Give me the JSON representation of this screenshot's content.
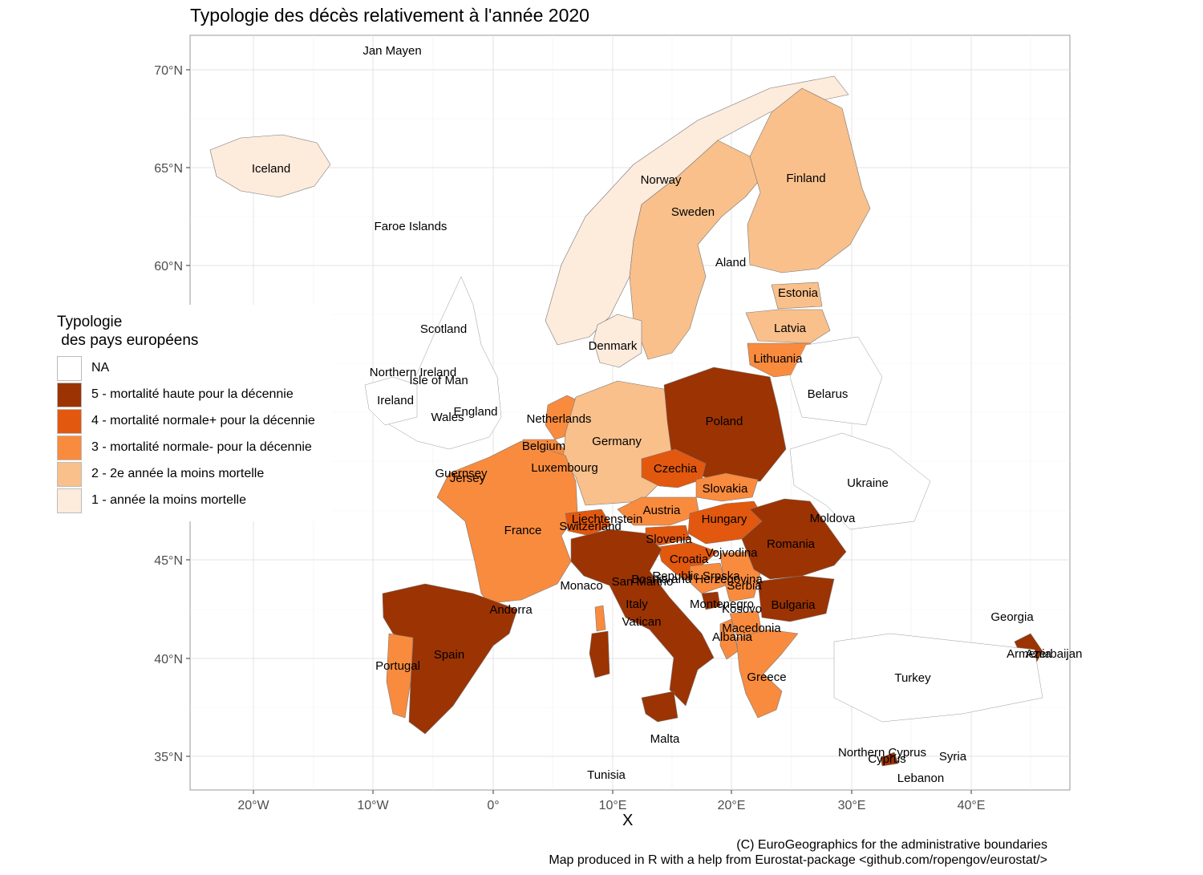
{
  "title": "Typologie des décès relativement à l'année 2020",
  "x_axis_title": "X",
  "axes": {
    "x_ticks": [
      "20°W",
      "10°W",
      "0°",
      "10°E",
      "20°E",
      "30°E",
      "40°E"
    ],
    "y_ticks": [
      "70°N",
      "65°N",
      "60°N",
      "45°N",
      "40°N",
      "35°N"
    ]
  },
  "legend": {
    "title": "Typologie\n des pays européens",
    "items": [
      {
        "label": "NA",
        "color": "#ffffff"
      },
      {
        "label": "5 - mortalité haute pour la décennie",
        "color": "#9c3303"
      },
      {
        "label": "4 - mortalité normale+ pour la décennie",
        "color": "#e2580e"
      },
      {
        "label": "3 - mortalité normale- pour la décennie",
        "color": "#f98b3e"
      },
      {
        "label": "2 - 2e année la moins mortelle",
        "color": "#f9c08b"
      },
      {
        "label": "1 - année la moins mortelle",
        "color": "#fdebdc"
      }
    ]
  },
  "country_labels": [
    "Jan Mayen",
    "Iceland",
    "Faroe Islands",
    "Norway",
    "Sweden",
    "Finland",
    "Aland",
    "Estonia",
    "Latvia",
    "Lithuania",
    "Scotland",
    "Denmark",
    "Northern Ireland",
    "Isle of Man",
    "Ireland",
    "Wales",
    "England",
    "Netherlands",
    "Belarus",
    "Poland",
    "Belgium",
    "Germany",
    "Luxembourg",
    "Guernsey",
    "Jersey",
    "Czechia",
    "Ukraine",
    "Slovakia",
    "Austria",
    "Liechtenstein",
    "Switzerland",
    "Hungary",
    "Moldova",
    "France",
    "Slovenia",
    "Romania",
    "Croatia",
    "Vojvodina",
    "Republic Srpska",
    "Bosnia and Herzegovina",
    "San Marino",
    "Monaco",
    "Serbia",
    "Montenegro",
    "Kosovo",
    "Italy",
    "Bulgaria",
    "Andorra",
    "Vatican",
    "Macedonia",
    "Albania",
    "Georgia",
    "Spain",
    "Portugal",
    "Armenia",
    "Azerbaijan",
    "Greece",
    "Turkey",
    "Malta",
    "Northern Cyprus",
    "Cyprus",
    "Syria",
    "Lebanon",
    "Tunisia"
  ],
  "caption": {
    "line1": "(C) EuroGeographics for the administrative boundaries",
    "line2": "Map produced in R with a help from Eurostat-package <github.com/ropengov/eurostat/>"
  }
}
